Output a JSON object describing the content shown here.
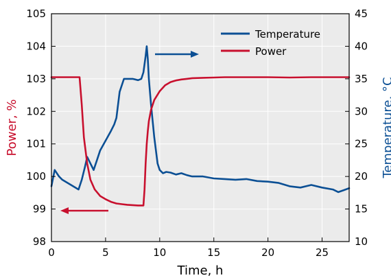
{
  "chart_data": {
    "type": "line",
    "xlabel": "Time, h",
    "ylabel_left": "Power, %",
    "ylabel_right": "Temperature, °C",
    "xlim": [
      0,
      27.5
    ],
    "ylim_left": [
      98,
      105
    ],
    "ylim_right": [
      10,
      45
    ],
    "xticks": [
      0,
      5,
      10,
      15,
      20,
      25
    ],
    "yticks_left": [
      98,
      99,
      100,
      101,
      102,
      103,
      104,
      105
    ],
    "yticks_right": [
      10,
      15,
      20,
      25,
      30,
      35,
      40,
      45
    ],
    "grid": true,
    "legend_position": "top-right",
    "series": [
      {
        "name": "Temperature",
        "axis": "right",
        "color": "#0b4f94",
        "x": [
          0,
          0.3,
          0.7,
          1.0,
          1.5,
          2.0,
          2.5,
          2.8,
          3.1,
          3.3,
          3.6,
          3.9,
          4.2,
          4.5,
          5.0,
          5.5,
          5.8,
          6.0,
          6.3,
          6.7,
          7.0,
          7.5,
          8.0,
          8.3,
          8.5,
          8.7,
          8.8,
          8.9,
          9.0,
          9.2,
          9.5,
          9.8,
          10.0,
          10.3,
          10.6,
          11.0,
          11.5,
          12.0,
          12.5,
          13.0,
          14.0,
          15.0,
          16.0,
          17.0,
          18.0,
          19.0,
          20.0,
          21.0,
          22.0,
          23.0,
          24.0,
          25.0,
          26.0,
          26.5,
          27.0,
          27.5
        ],
        "y": [
          18.5,
          21.0,
          20.0,
          19.5,
          19.0,
          18.5,
          18.0,
          19.5,
          21.5,
          23.0,
          22.0,
          21.0,
          22.5,
          24.0,
          25.5,
          27.0,
          28.0,
          29.0,
          33.0,
          35.0,
          35.0,
          35.0,
          34.8,
          35.0,
          36.0,
          38.5,
          40.0,
          38.0,
          35.0,
          31.0,
          26.0,
          22.0,
          21.0,
          20.5,
          20.7,
          20.6,
          20.3,
          20.5,
          20.2,
          20.0,
          20.0,
          19.7,
          19.6,
          19.5,
          19.6,
          19.3,
          19.2,
          19.0,
          18.5,
          18.3,
          18.7,
          18.3,
          18.0,
          17.6,
          17.9,
          18.2
        ]
      },
      {
        "name": "Power",
        "axis": "left",
        "color": "#c8102e",
        "x": [
          0,
          1.0,
          2.0,
          2.6,
          2.8,
          3.0,
          3.3,
          3.6,
          4.0,
          4.5,
          5.0,
          5.5,
          6.0,
          6.5,
          7.0,
          7.5,
          8.0,
          8.5,
          8.6,
          8.7,
          8.8,
          8.9,
          9.0,
          9.2,
          9.5,
          10.0,
          10.5,
          11.0,
          11.5,
          12.0,
          12.5,
          13.0,
          14.0,
          15.0,
          16.0,
          18.0,
          20.0,
          22.0,
          24.0,
          26.0,
          27.5
        ],
        "y": [
          103.05,
          103.05,
          103.05,
          103.05,
          102.2,
          101.2,
          100.4,
          99.9,
          99.6,
          99.4,
          99.3,
          99.22,
          99.17,
          99.15,
          99.13,
          99.12,
          99.11,
          99.11,
          99.6,
          100.4,
          101.0,
          101.4,
          101.7,
          102.05,
          102.35,
          102.62,
          102.8,
          102.9,
          102.95,
          102.98,
          103.0,
          103.02,
          103.03,
          103.04,
          103.05,
          103.05,
          103.05,
          103.04,
          103.05,
          103.05,
          103.05
        ]
      }
    ]
  }
}
